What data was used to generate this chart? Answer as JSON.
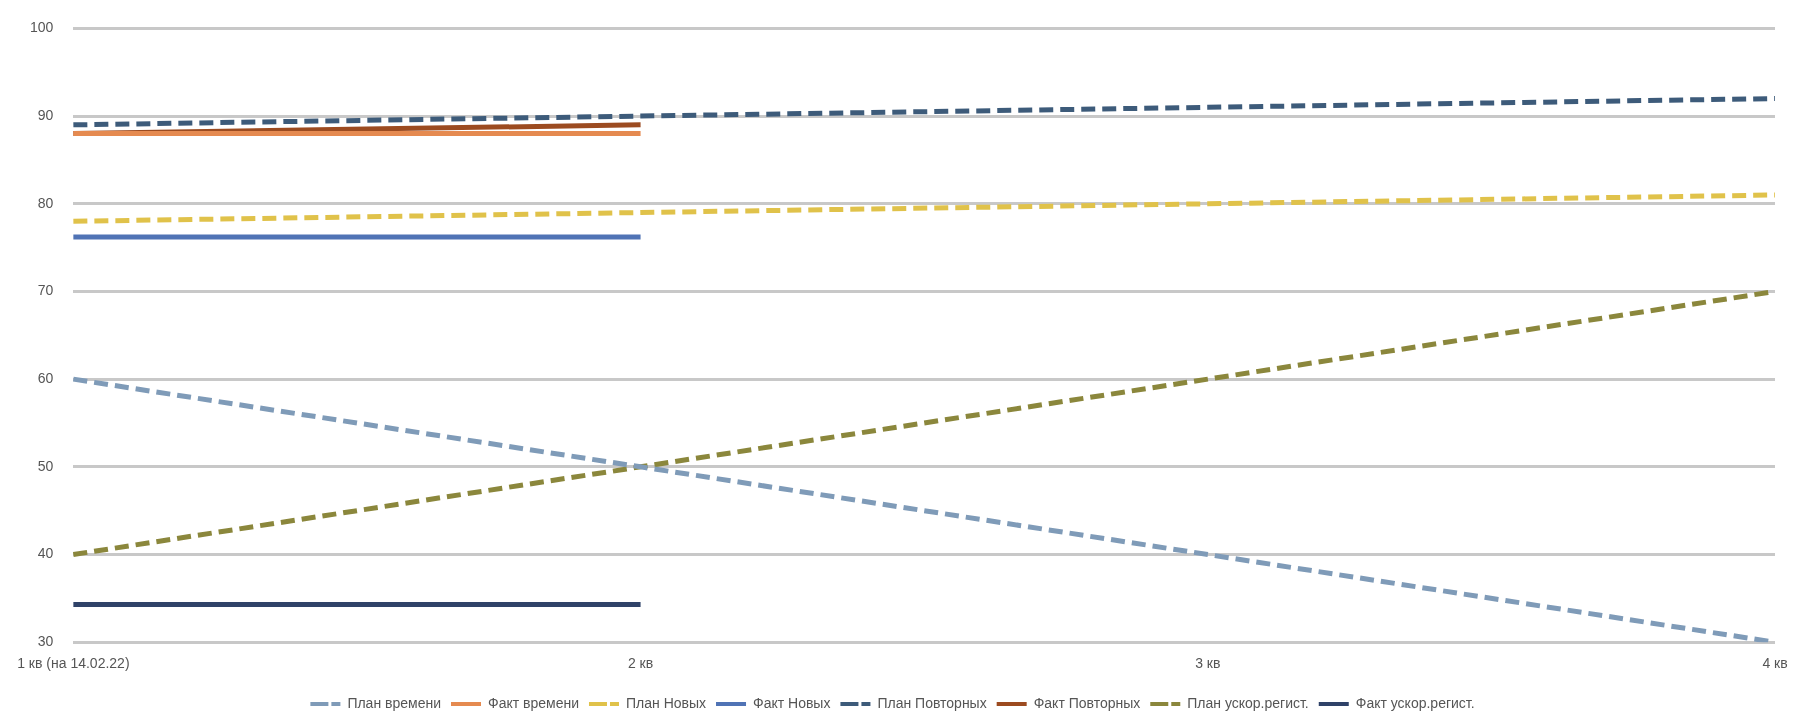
{
  "chart_data": {
    "type": "line",
    "categories": [
      "1 кв (на 14.02.22)",
      "2 кв",
      "3 кв",
      "4 кв"
    ],
    "series": [
      {
        "name": "План времени",
        "color": "#7f9bb8",
        "line_style": "dashed",
        "values": [
          60,
          50,
          40,
          30
        ]
      },
      {
        "name": "Факт времени",
        "color": "#e58a50",
        "line_style": "solid",
        "values": [
          88,
          88,
          null,
          null
        ]
      },
      {
        "name": "План Новых",
        "color": "#e0c24a",
        "line_style": "dashed",
        "values": [
          78,
          79,
          80,
          81
        ]
      },
      {
        "name": "Факт Новых",
        "color": "#5073b5",
        "line_style": "solid",
        "values": [
          76.2,
          76.2,
          null,
          null
        ]
      },
      {
        "name": "План Повторных",
        "color": "#3d5b7a",
        "line_style": "dashed",
        "values": [
          89,
          90,
          91,
          92
        ]
      },
      {
        "name": "Факт Повторных",
        "color": "#9c4b20",
        "line_style": "solid",
        "values": [
          88,
          89,
          null,
          null
        ]
      },
      {
        "name": "План ускор.регист.",
        "color": "#8b873c",
        "line_style": "dashed",
        "values": [
          40,
          50,
          60,
          70
        ]
      },
      {
        "name": "Факт ускор.регист.",
        "color": "#2f4268",
        "line_style": "solid",
        "values": [
          34.3,
          34.3,
          null,
          null
        ]
      }
    ],
    "ylim": [
      30,
      100
    ],
    "yticks": [
      30,
      40,
      50,
      60,
      70,
      80,
      90,
      100
    ],
    "grid": "y",
    "legend": "bottom",
    "marker": "none"
  }
}
